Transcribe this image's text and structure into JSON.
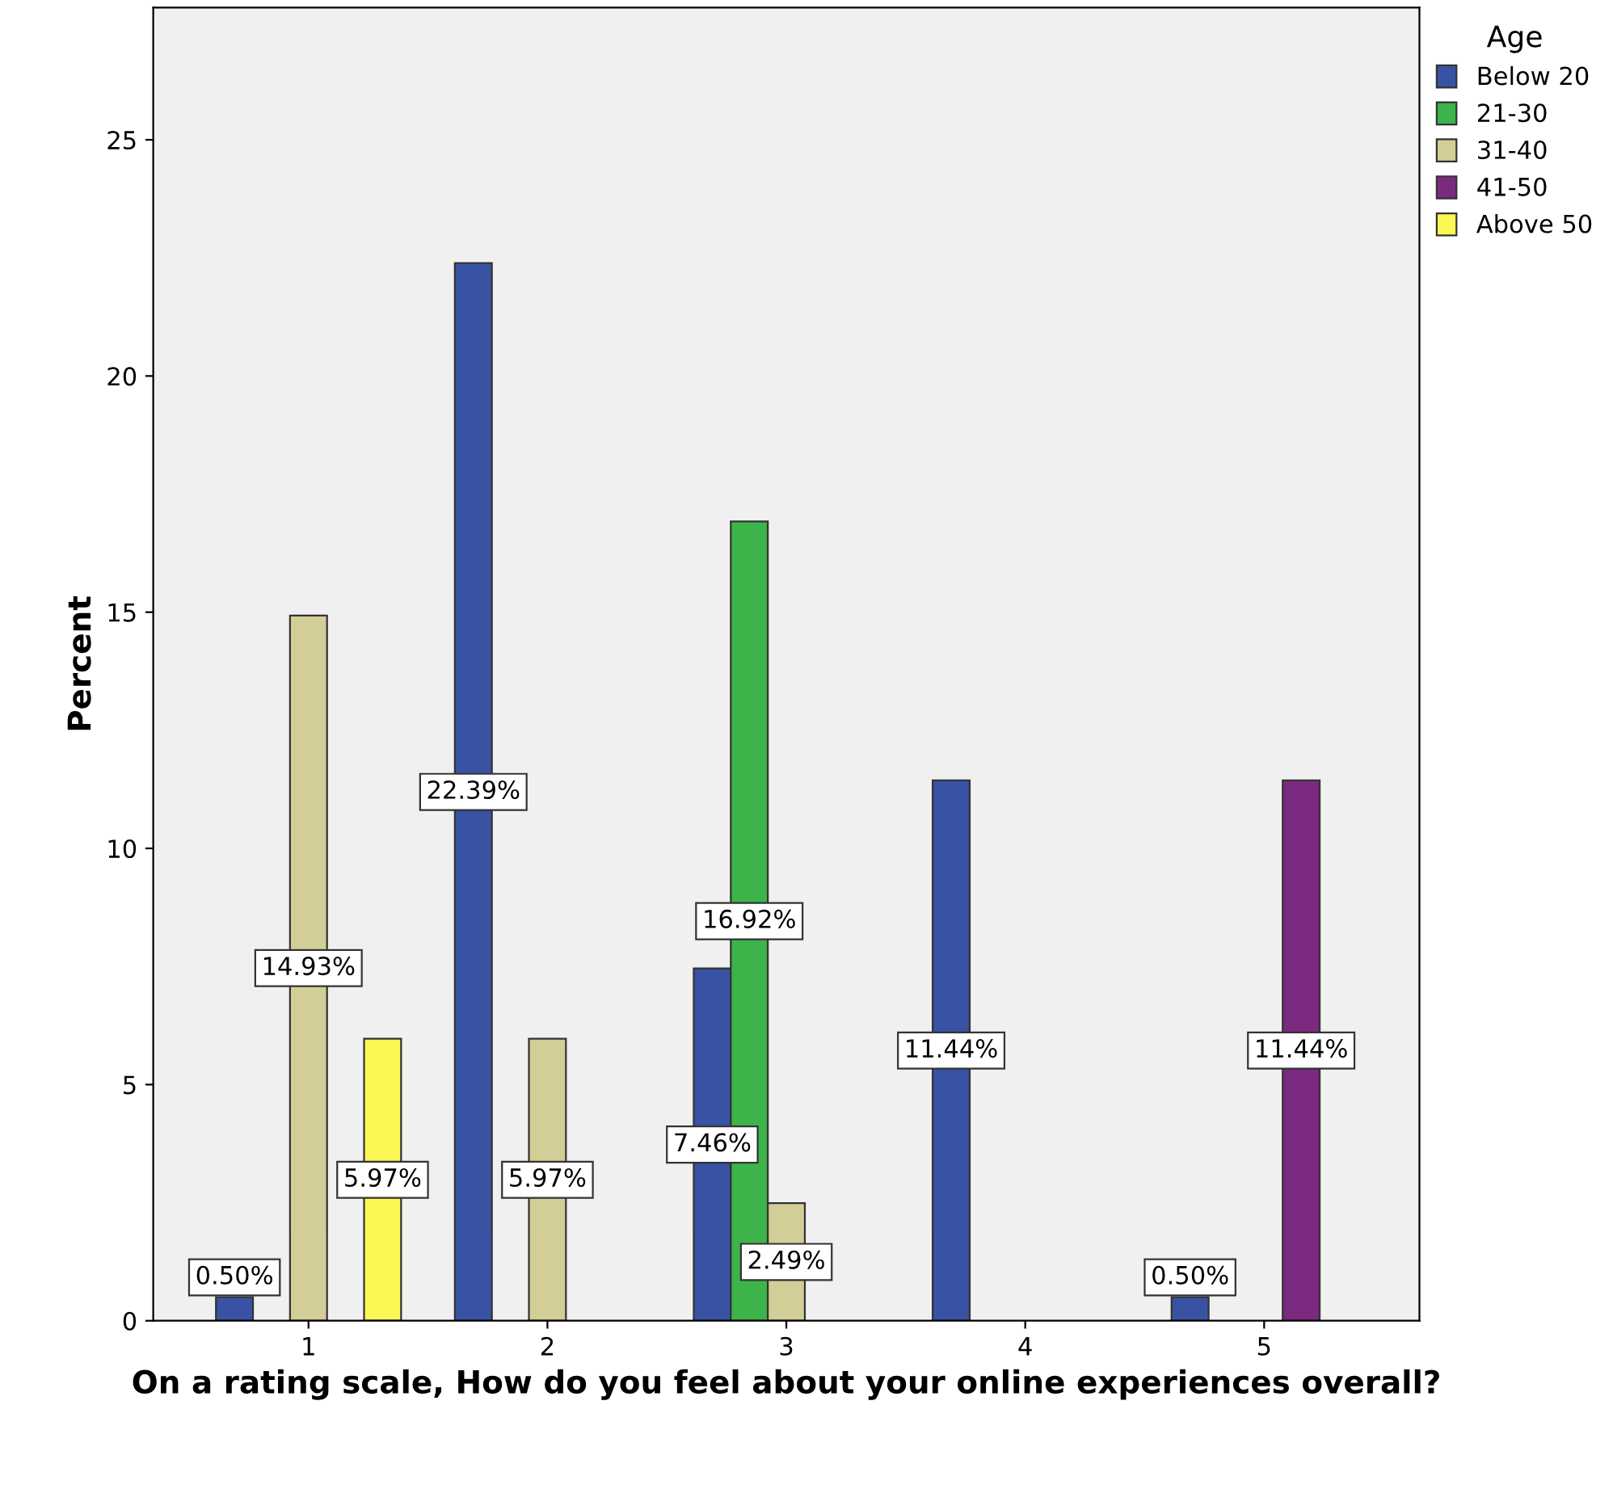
{
  "chart_data": {
    "type": "bar",
    "xlabel": "On a rating scale, How do you feel about your online experiences overall?",
    "ylabel": "Percent",
    "legend_title": "Age",
    "legend": "top right",
    "grid": false,
    "categories": [
      "1",
      "2",
      "3",
      "4",
      "5"
    ],
    "ylim": [
      0,
      27.8
    ],
    "yticks": [
      0,
      5,
      10,
      15,
      20,
      25
    ],
    "series": [
      {
        "name": "Below 20",
        "color": "#3953a4",
        "values": [
          0.5,
          22.39,
          7.46,
          11.44,
          0.5
        ],
        "value_labels": [
          "0.50%",
          "22.39%",
          "7.46%",
          "11.44%",
          "0.50%"
        ]
      },
      {
        "name": "21-30",
        "color": "#3cb44a",
        "values": [
          null,
          null,
          16.92,
          null,
          null
        ],
        "value_labels": [
          null,
          null,
          "16.92%",
          null,
          null
        ]
      },
      {
        "name": "31-40",
        "color": "#d3ce97",
        "values": [
          14.93,
          5.97,
          2.49,
          null,
          null
        ],
        "value_labels": [
          "14.93%",
          "5.97%",
          "2.49%",
          null,
          null
        ]
      },
      {
        "name": "41-50",
        "color": "#7b2a7f",
        "values": [
          null,
          null,
          null,
          null,
          11.44
        ],
        "value_labels": [
          null,
          null,
          null,
          null,
          "11.44%"
        ]
      },
      {
        "name": "Above 50",
        "color": "#fbf754",
        "values": [
          5.97,
          null,
          null,
          null,
          null
        ],
        "value_labels": [
          "5.97%",
          null,
          null,
          null,
          null
        ]
      }
    ]
  }
}
